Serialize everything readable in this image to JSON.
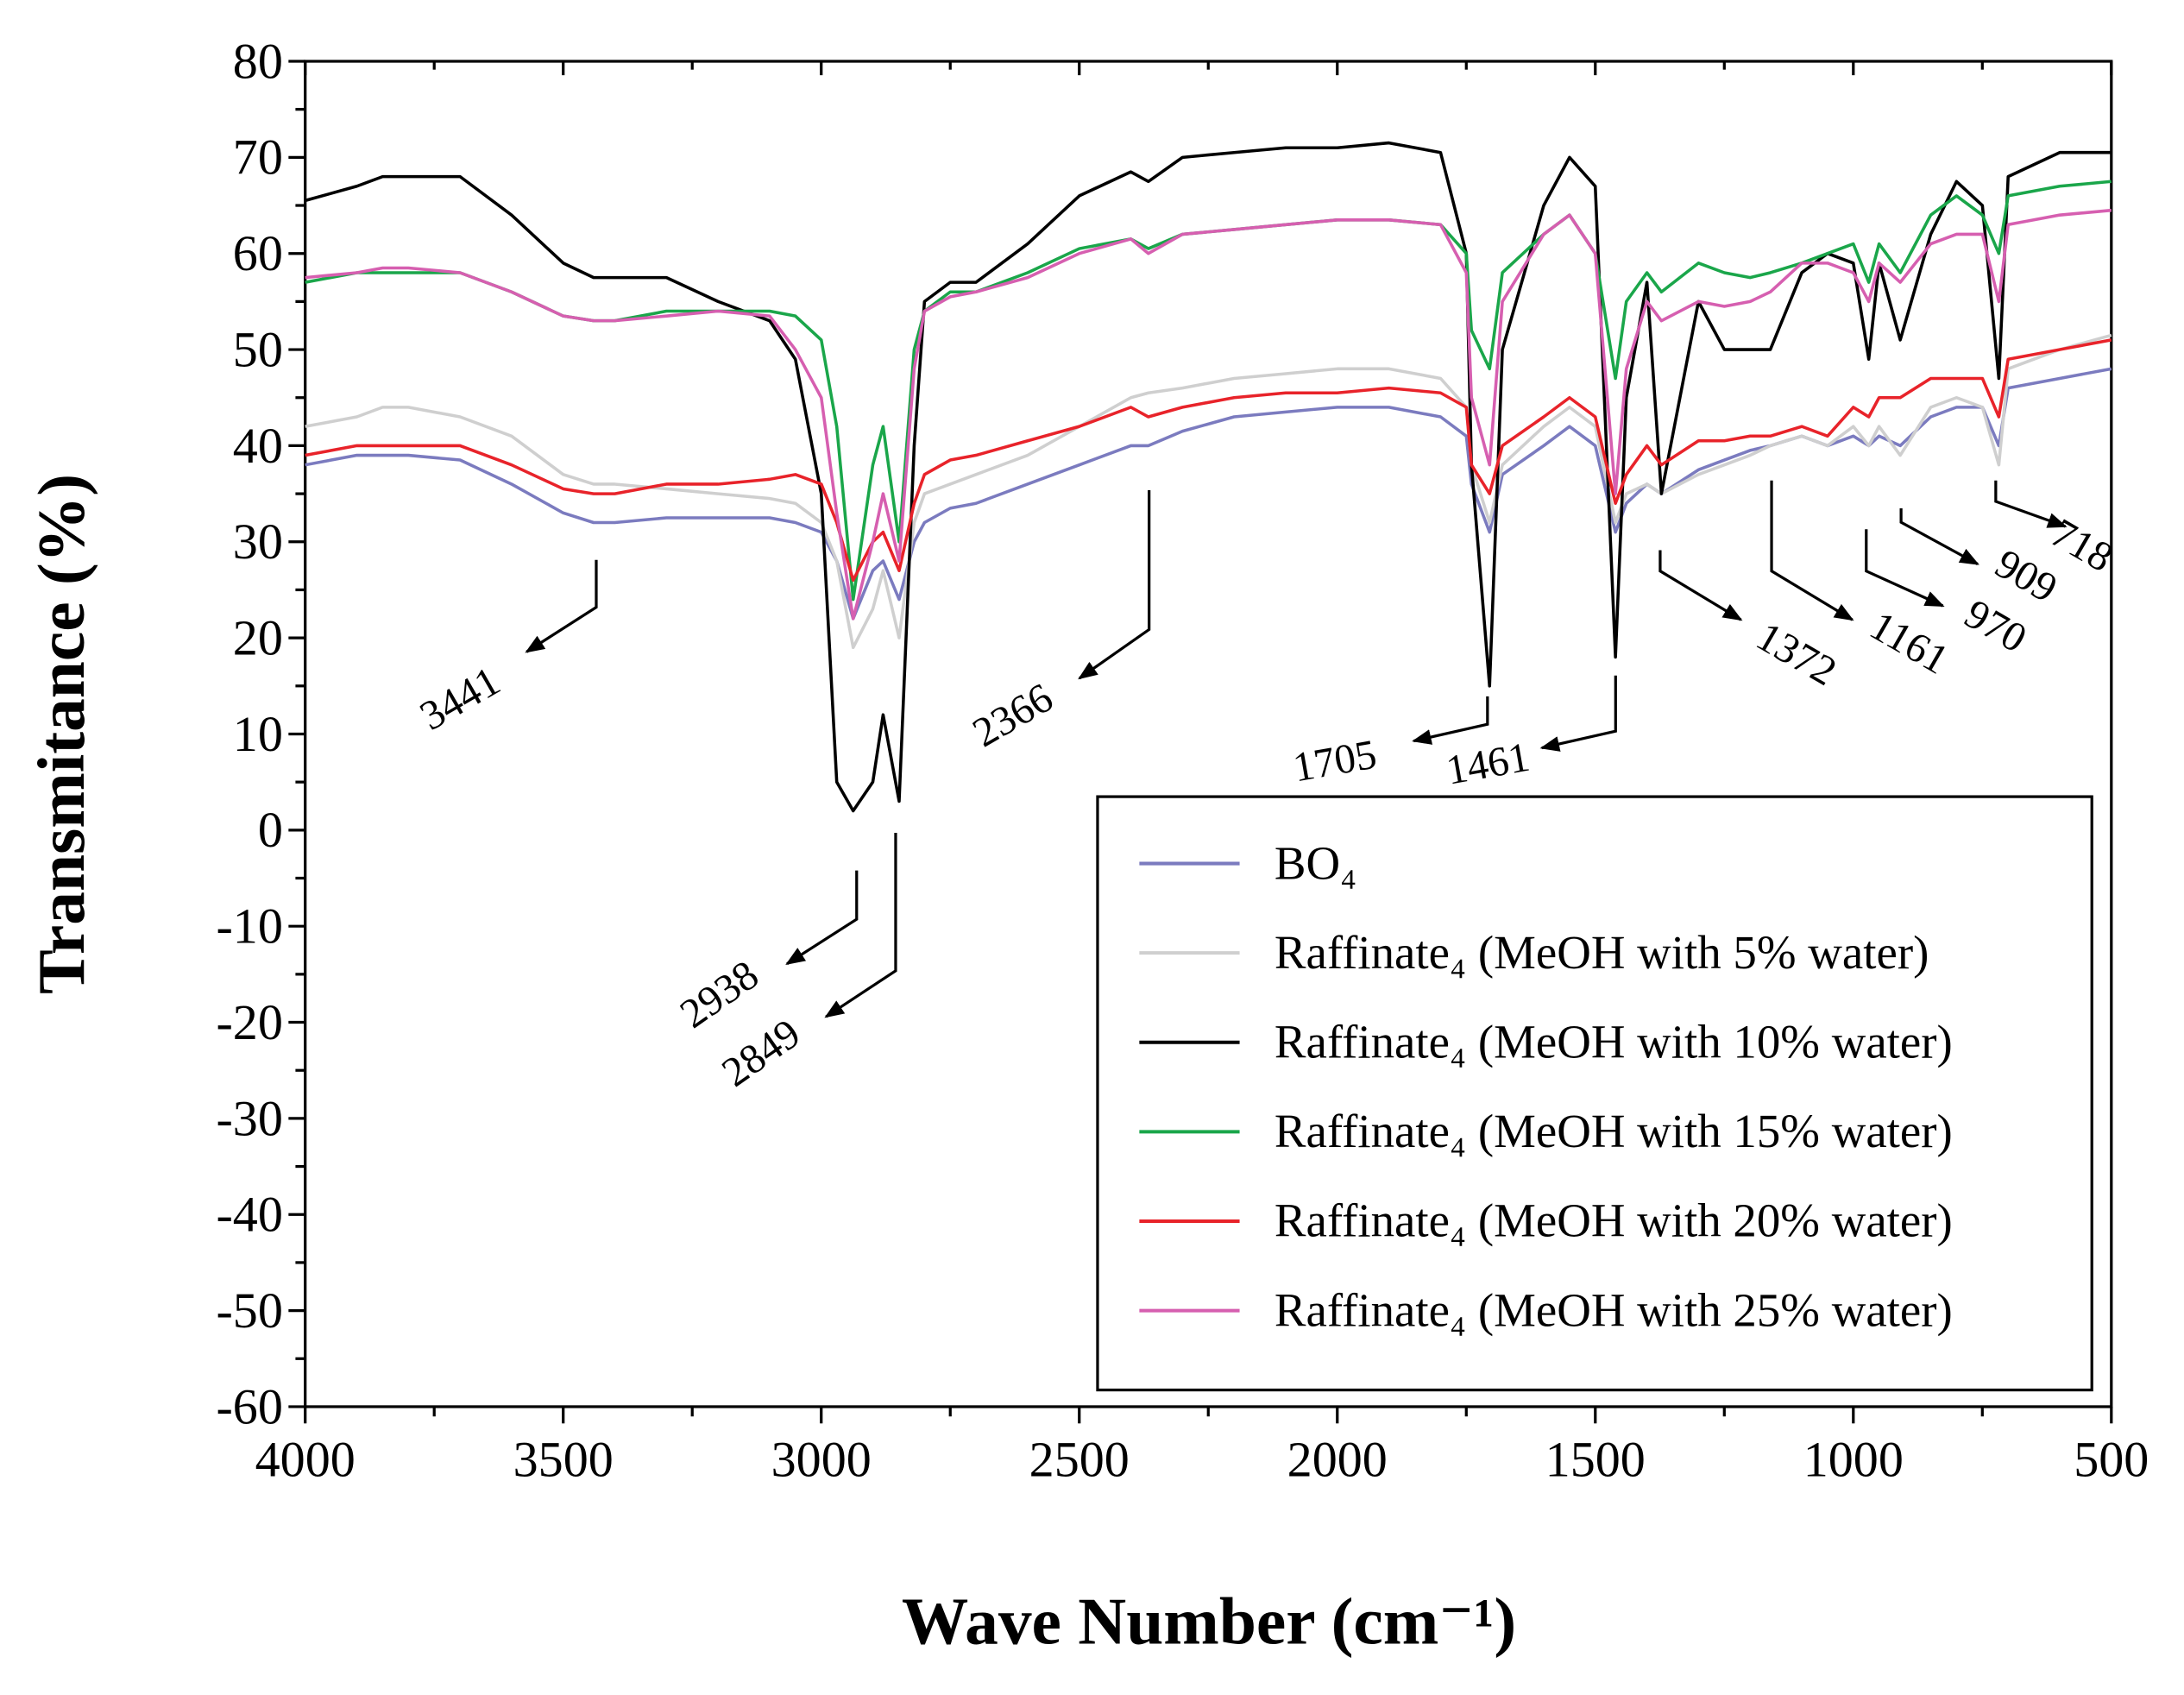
{
  "chart_data": {
    "type": "line",
    "x_label": "Wave Number (cm⁻¹)",
    "y_label": "Transmitance (%)",
    "xlim": [
      4000,
      500
    ],
    "ylim": [
      -60,
      80
    ],
    "xticks": [
      4000,
      3500,
      3000,
      2500,
      2000,
      1500,
      1000,
      500
    ],
    "yticks": [
      -60,
      -50,
      -40,
      -30,
      -20,
      -10,
      0,
      10,
      20,
      30,
      40,
      50,
      60,
      70,
      80
    ],
    "x": [
      4000,
      3900,
      3850,
      3800,
      3700,
      3600,
      3500,
      3441,
      3400,
      3300,
      3200,
      3100,
      3050,
      3000,
      2970,
      2938,
      2900,
      2880,
      2849,
      2820,
      2800,
      2750,
      2700,
      2600,
      2500,
      2400,
      2366,
      2300,
      2200,
      2100,
      2000,
      1900,
      1800,
      1750,
      1740,
      1705,
      1680,
      1600,
      1550,
      1500,
      1461,
      1440,
      1400,
      1372,
      1300,
      1250,
      1200,
      1161,
      1100,
      1050,
      1000,
      970,
      950,
      909,
      850,
      800,
      750,
      718,
      700,
      600,
      500
    ],
    "series": [
      {
        "name": "BO₄",
        "color": "#7b7bbf",
        "values": [
          38,
          39,
          39,
          39,
          38.5,
          36,
          33,
          32,
          32,
          32.5,
          32.5,
          32.5,
          32,
          31,
          28,
          22,
          27,
          28,
          24,
          30,
          32,
          33.5,
          34,
          36,
          38,
          40,
          40,
          41.5,
          43,
          43.5,
          44,
          44,
          43,
          41,
          36,
          31,
          37,
          40,
          42,
          40,
          31,
          34,
          36,
          35,
          37.5,
          38.5,
          39.5,
          40,
          41,
          40,
          41,
          40,
          41,
          40,
          43,
          44,
          44,
          40,
          46,
          47,
          48
        ]
      },
      {
        "name": "Raffinate₄ (MeOH with 5% water)",
        "color": "#cfcfcf",
        "values": [
          42,
          43,
          44,
          44,
          43,
          41,
          37,
          36,
          36,
          35.5,
          35,
          34.5,
          34,
          32,
          28,
          19,
          23,
          27,
          20,
          32,
          35,
          36,
          37,
          39,
          42,
          45,
          45.5,
          46,
          47,
          47.5,
          48,
          48,
          47,
          44,
          38,
          32,
          38,
          42,
          44,
          42,
          32,
          35,
          36,
          35,
          37,
          38,
          39,
          40,
          41,
          40,
          42,
          40,
          42,
          39,
          44,
          45,
          44,
          38,
          48,
          50,
          51.5
        ]
      },
      {
        "name": "Raffinate₄ (MeOH with 10% water)",
        "color": "#000000",
        "values": [
          65.5,
          67,
          68,
          68,
          68,
          64,
          59,
          57.5,
          57.5,
          57.5,
          55,
          53,
          49,
          35,
          5,
          2,
          5,
          12,
          3,
          40,
          55,
          57,
          57,
          61,
          66,
          68.5,
          67.5,
          70,
          70.5,
          71,
          71,
          71.5,
          70.5,
          60,
          38,
          15,
          50,
          65,
          70,
          67,
          18,
          45,
          57,
          35,
          55,
          50,
          50,
          50,
          58,
          60,
          59,
          49,
          59,
          51,
          62,
          67.5,
          65,
          47,
          68,
          70.5,
          70.5
        ]
      },
      {
        "name": "Raffinate₄ (MeOH with 15% water)",
        "color": "#1aa64a",
        "values": [
          57,
          58,
          58,
          58,
          58,
          56,
          53.5,
          53,
          53,
          54,
          54,
          54,
          53.5,
          51,
          42,
          24,
          38,
          42,
          30,
          50,
          54,
          56,
          56,
          58,
          60.5,
          61.5,
          60.5,
          62,
          62.5,
          63,
          63.5,
          63.5,
          63,
          60,
          52,
          48,
          58,
          62,
          64,
          60,
          47,
          55,
          58,
          56,
          59,
          58,
          57.5,
          58,
          59,
          60,
          61,
          57,
          61,
          58,
          64,
          66,
          64,
          60,
          66,
          67,
          67.5
        ]
      },
      {
        "name": "Raffinate₄ (MeOH with 20% water)",
        "color": "#e8232a",
        "values": [
          39,
          40,
          40,
          40,
          40,
          38,
          35.5,
          35,
          35,
          36,
          36,
          36.5,
          37,
          36,
          32,
          26,
          30,
          31,
          27,
          34,
          37,
          38.5,
          39,
          40.5,
          42,
          44,
          43,
          44,
          45,
          45.5,
          45.5,
          46,
          45.5,
          44,
          38,
          35,
          40,
          43,
          45,
          43,
          34,
          37,
          40,
          38,
          40.5,
          40.5,
          41,
          41,
          42,
          41,
          44,
          43,
          45,
          45,
          47,
          47,
          47,
          43,
          49,
          50,
          51
        ]
      },
      {
        "name": "Raffinate₄ (MeOH with 25% water)",
        "color": "#d65fb0",
        "values": [
          57.5,
          58,
          58.5,
          58.5,
          58,
          56,
          53.5,
          53,
          53,
          53.5,
          54,
          53.5,
          50,
          45,
          33,
          22,
          30,
          35,
          28,
          48,
          54,
          55.5,
          56,
          57.5,
          60,
          61.5,
          60,
          62,
          62.5,
          63,
          63.5,
          63.5,
          63,
          58,
          45,
          38,
          55,
          62,
          64,
          60,
          35,
          48,
          55,
          53,
          55,
          54.5,
          55,
          56,
          59,
          59,
          58,
          55,
          59,
          57,
          61,
          62,
          62,
          55,
          63,
          64,
          64.5
        ]
      }
    ],
    "annotations": [
      "3441",
      "2938",
      "2849",
      "2366",
      "1705",
      "1461",
      "1372",
      "1161",
      "970",
      "909",
      "718"
    ]
  }
}
